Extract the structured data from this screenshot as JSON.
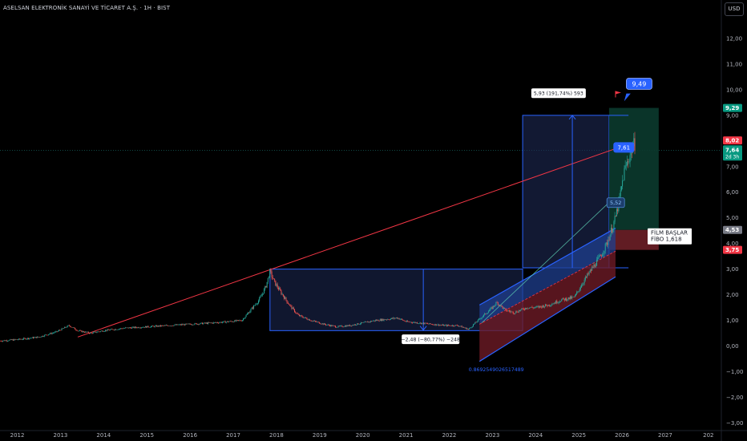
{
  "header": {
    "title": "ASELSAN ELEKTRONİK SANAYİ VE TİCARET A.Ş. · 1H · BIST",
    "currency": "USD"
  },
  "chart_data": {
    "type": "line",
    "title": "ASELSAN ELEKTRONİK SANAYİ VE TİCARET A.Ş. · 1H · BIST",
    "xlabel": "",
    "ylabel": "",
    "x_ticks": [
      "2012",
      "2013",
      "2014",
      "2015",
      "2016",
      "2017",
      "2018",
      "2019",
      "2020",
      "2021",
      "2022",
      "2023",
      "2024",
      "2025",
      "2026",
      "2027",
      "202"
    ],
    "y_ticks": [
      "13,00",
      "12,00",
      "11,00",
      "10,00",
      "9,00",
      "8,00",
      "7,00",
      "6,00",
      "5,00",
      "4,00",
      "3,00",
      "2,00",
      "1,00",
      "0,00",
      "−1,00",
      "−2,00",
      "−3,00"
    ],
    "xlim": [
      2011.6,
      2028.3
    ],
    "ylim": [
      -3.3,
      13.5
    ],
    "grid": false,
    "series": [
      {
        "x": [
          2011.6,
          2012.0,
          2012.5,
          2012.9,
          2013.2,
          2013.4,
          2013.7,
          2014.0,
          2014.5,
          2015.0,
          2015.5,
          2016.0,
          2016.5,
          2016.9,
          2017.2,
          2017.4,
          2017.6,
          2017.75,
          2017.85,
          2017.95,
          2018.1,
          2018.3,
          2018.5,
          2018.8,
          2019.1,
          2019.4,
          2019.7,
          2020.0,
          2020.3,
          2020.6,
          2020.8,
          2021.0,
          2021.3,
          2021.6,
          2021.9,
          2022.2,
          2022.45,
          2022.6,
          2022.8,
          2023.0,
          2023.1,
          2023.3,
          2023.5,
          2023.8,
          2024.0,
          2024.3,
          2024.6,
          2024.9,
          2025.1,
          2025.3,
          2025.5,
          2025.65,
          2025.75,
          2025.85,
          2025.95,
          2026.05,
          2026.15,
          2026.25,
          2026.3
        ],
        "y": [
          0.2,
          0.25,
          0.35,
          0.55,
          0.8,
          0.6,
          0.5,
          0.6,
          0.7,
          0.75,
          0.8,
          0.85,
          0.9,
          0.95,
          1.0,
          1.4,
          1.8,
          2.3,
          2.9,
          2.5,
          2.1,
          1.6,
          1.2,
          1.0,
          0.85,
          0.75,
          0.8,
          0.9,
          1.0,
          1.05,
          1.1,
          0.95,
          0.9,
          0.85,
          0.8,
          0.8,
          0.65,
          0.9,
          1.2,
          1.5,
          1.7,
          1.4,
          1.3,
          1.5,
          1.5,
          1.6,
          1.8,
          1.9,
          2.5,
          3.0,
          3.5,
          4.0,
          4.5,
          5.0,
          5.8,
          6.8,
          7.3,
          7.8,
          7.9
        ]
      }
    ],
    "price_labels": {
      "high": "9,29",
      "current": "8,02",
      "last": "7,64",
      "countdown": "2d 3h",
      "fibo": "4,53",
      "low": "3,75"
    },
    "annotations": {
      "target_flag": "9,49",
      "level_7_61": "7,61",
      "level_5_52": "5,52",
      "measure_up": "5,93 (191,74%) 593",
      "measure_down": "−2,48 (−80,77%) −248",
      "channel_value": "0.8692549026517489",
      "film_line1": "FİLM BAŞLAR",
      "film_line2": "FİBO 1,618"
    },
    "colors": {
      "candle_up": "#26a69a",
      "candle_down": "#ef5350",
      "trendline": "#f23645",
      "box_blue": "#2962ff",
      "box_fill": "#1e2a55",
      "target_green": "#089981",
      "highlight_blue": "#2962ff"
    }
  }
}
